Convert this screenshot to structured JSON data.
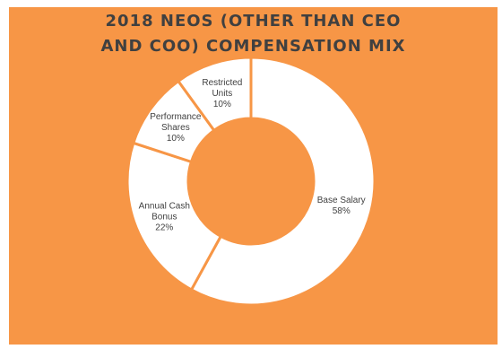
{
  "chart_data": {
    "type": "pie",
    "donut": true,
    "title": "2018 NEOS (OTHER  THAN CEO\nAND COO) COMPENSATION  MIX",
    "categories": [
      "Base Salary",
      "Annual Cash Bonus",
      "Performance Shares",
      "Restricted Units"
    ],
    "values": [
      58,
      22,
      10,
      10
    ],
    "labels": [
      [
        "Base Salary",
        "58%"
      ],
      [
        "Annual Cash",
        "Bonus",
        "22%"
      ],
      [
        "Performance",
        "Shares",
        "10%"
      ],
      [
        "Restricted",
        "Units",
        "10%"
      ]
    ],
    "colors": {
      "background": "#f79646",
      "slice_fill": "#ffffff",
      "slice_border": "#f79646",
      "label_text": "#404040"
    }
  }
}
